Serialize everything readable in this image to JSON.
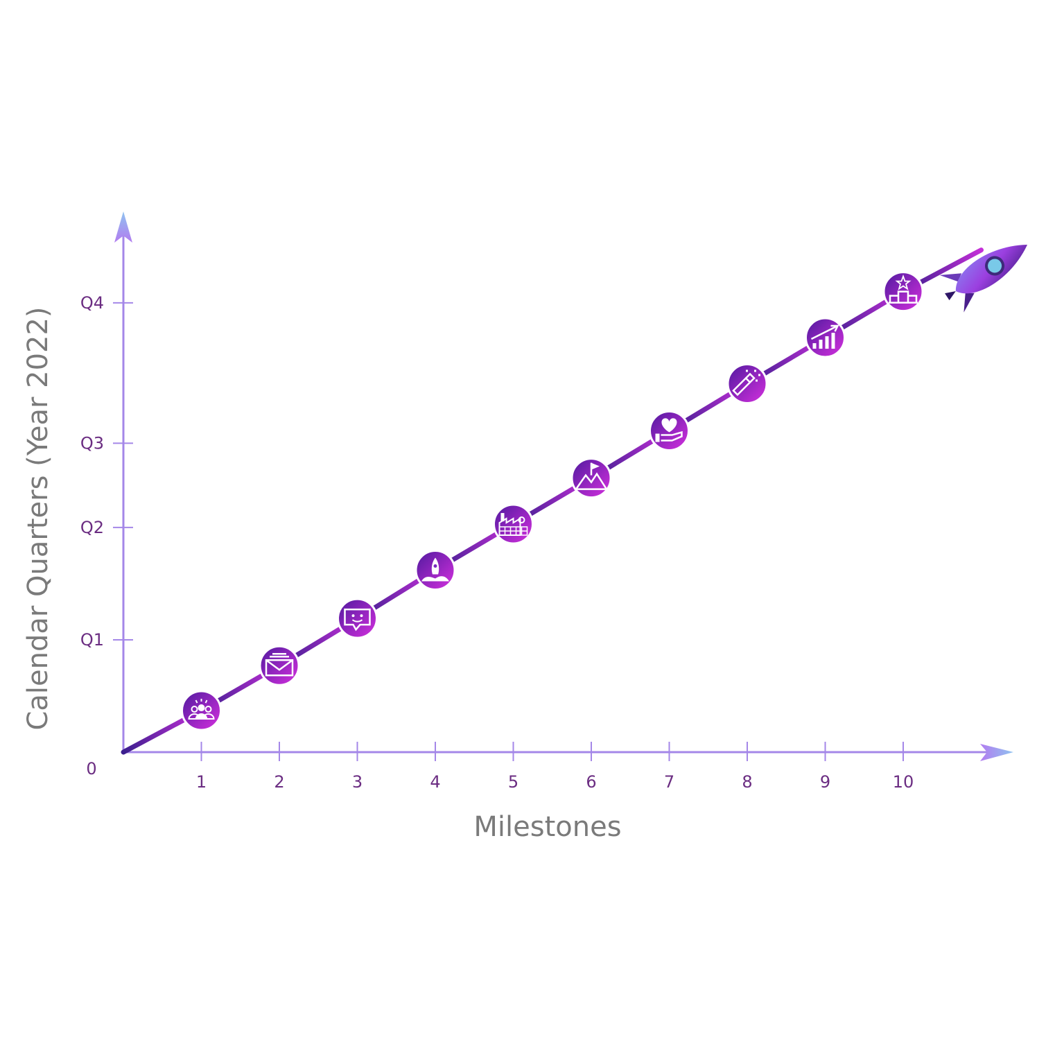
{
  "chart_data": {
    "type": "line",
    "title": "",
    "xlabel": "Milestones",
    "ylabel": "Calendar Quarters (Year 2022)",
    "origin_label": "0",
    "x_ticks": [
      "1",
      "2",
      "3",
      "4",
      "5",
      "6",
      "7",
      "8",
      "9",
      "10"
    ],
    "y_ticks": [
      {
        "label": "Q1",
        "value": 1.0
      },
      {
        "label": "Q2",
        "value": 2.0
      },
      {
        "label": "Q3",
        "value": 2.75
      },
      {
        "label": "Q4",
        "value": 4.0
      }
    ],
    "xlim": [
      0,
      11.2
    ],
    "ylim": [
      0,
      4.4
    ],
    "grid": false,
    "legend": "none",
    "series": [
      {
        "x": [
          0,
          1,
          2,
          3,
          4,
          5,
          6,
          7,
          8,
          9,
          10,
          11
        ],
        "y": [
          0,
          0.37,
          0.77,
          1.19,
          1.62,
          2.03,
          2.44,
          2.86,
          3.28,
          3.69,
          4.1,
          4.47
        ],
        "markers": [
          "team-icon",
          "envelope-icon",
          "chat-icon",
          "rocket-launch-icon",
          "factory-icon",
          "mountain-flag-icon",
          "heart-hand-icon",
          "champagne-icon",
          "growth-chart-icon",
          "podium-star-icon"
        ],
        "end_marker": "rocket-icon"
      }
    ],
    "colors": {
      "axis": "#a487e8",
      "axis_arrow_light": "#8fc3f0",
      "line_dark": "#3b1f8e",
      "line_light": "#c42fd8",
      "marker_dark": "#4f1a9e",
      "marker_light": "#d630df",
      "tick_text": "#6b2d82",
      "title_text": "#7a7a7a"
    }
  }
}
